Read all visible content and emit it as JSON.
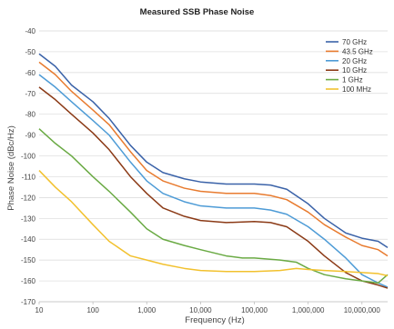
{
  "chart_data": {
    "type": "line",
    "title": "Measured SSB Phase Noise",
    "xlabel": "Frequency (Hz)",
    "ylabel": "Phase Noise (dBc/Hz)",
    "x_scale": "log",
    "xlim": [
      10,
      30000000
    ],
    "ylim": [
      -170,
      -40
    ],
    "x_ticks": [
      10,
      100,
      1000,
      10000,
      100000,
      1000000,
      10000000
    ],
    "x_tick_labels": [
      "10",
      "100",
      "1,000",
      "10,000",
      "100,000",
      "1,000,000",
      "10,000,000"
    ],
    "y_ticks": [
      -40,
      -50,
      -60,
      -70,
      -80,
      -90,
      -100,
      -110,
      -120,
      -130,
      -140,
      -150,
      -160,
      -170
    ],
    "y_tick_labels": [
      "-40",
      "-50",
      "-60",
      "-70",
      "-80",
      "-90",
      "-100",
      "-110",
      "-120",
      "-130",
      "-140",
      "-150",
      "-160",
      "-170"
    ],
    "grid": "horizontal",
    "legend_position": "top-right",
    "series": [
      {
        "name": "70 GHz",
        "color": "#3a62a8",
        "points": [
          [
            10,
            -51
          ],
          [
            20,
            -57
          ],
          [
            40,
            -66
          ],
          [
            100,
            -74
          ],
          [
            200,
            -82
          ],
          [
            500,
            -95
          ],
          [
            1000,
            -103
          ],
          [
            2000,
            -108
          ],
          [
            5000,
            -111
          ],
          [
            10000,
            -112.5
          ],
          [
            30000,
            -113.5
          ],
          [
            60000,
            -113.5
          ],
          [
            100000,
            -113.5
          ],
          [
            200000,
            -114
          ],
          [
            400000,
            -116
          ],
          [
            1000000,
            -123
          ],
          [
            2000000,
            -130
          ],
          [
            5000000,
            -137
          ],
          [
            10000000,
            -139.5
          ],
          [
            20000000,
            -141
          ],
          [
            30000000,
            -144
          ]
        ]
      },
      {
        "name": "43.5 GHz",
        "color": "#e87b2f",
        "points": [
          [
            10,
            -55
          ],
          [
            20,
            -61
          ],
          [
            40,
            -69
          ],
          [
            100,
            -78
          ],
          [
            200,
            -85
          ],
          [
            500,
            -98
          ],
          [
            1000,
            -107
          ],
          [
            2000,
            -112
          ],
          [
            5000,
            -115.5
          ],
          [
            10000,
            -117
          ],
          [
            30000,
            -118
          ],
          [
            100000,
            -118
          ],
          [
            200000,
            -119
          ],
          [
            400000,
            -121
          ],
          [
            1000000,
            -127
          ],
          [
            2000000,
            -133
          ],
          [
            5000000,
            -139
          ],
          [
            10000000,
            -143
          ],
          [
            20000000,
            -145
          ],
          [
            30000000,
            -148
          ]
        ]
      },
      {
        "name": "20 GHz",
        "color": "#4d9bd6",
        "points": [
          [
            10,
            -61
          ],
          [
            20,
            -67
          ],
          [
            40,
            -74
          ],
          [
            100,
            -83
          ],
          [
            200,
            -90
          ],
          [
            500,
            -103
          ],
          [
            1000,
            -112
          ],
          [
            2000,
            -118
          ],
          [
            5000,
            -122
          ],
          [
            10000,
            -124
          ],
          [
            30000,
            -125
          ],
          [
            100000,
            -125
          ],
          [
            200000,
            -126
          ],
          [
            400000,
            -128
          ],
          [
            1000000,
            -134
          ],
          [
            2000000,
            -140
          ],
          [
            5000000,
            -149
          ],
          [
            10000000,
            -157
          ],
          [
            20000000,
            -161
          ],
          [
            30000000,
            -163
          ]
        ]
      },
      {
        "name": "10 GHz",
        "color": "#8b3a16",
        "points": [
          [
            10,
            -67
          ],
          [
            20,
            -73
          ],
          [
            40,
            -80
          ],
          [
            100,
            -89
          ],
          [
            200,
            -97
          ],
          [
            500,
            -110
          ],
          [
            1000,
            -118
          ],
          [
            2000,
            -125
          ],
          [
            5000,
            -129
          ],
          [
            10000,
            -131
          ],
          [
            30000,
            -132
          ],
          [
            100000,
            -131.5
          ],
          [
            200000,
            -132
          ],
          [
            400000,
            -134
          ],
          [
            1000000,
            -141
          ],
          [
            2000000,
            -148
          ],
          [
            5000000,
            -156
          ],
          [
            10000000,
            -160
          ],
          [
            20000000,
            -162
          ],
          [
            30000000,
            -163.5
          ]
        ]
      },
      {
        "name": "1 GHz",
        "color": "#6aaa44",
        "points": [
          [
            10,
            -87
          ],
          [
            20,
            -94
          ],
          [
            40,
            -100
          ],
          [
            100,
            -110
          ],
          [
            200,
            -117
          ],
          [
            500,
            -127
          ],
          [
            1000,
            -135
          ],
          [
            2000,
            -140
          ],
          [
            5000,
            -143
          ],
          [
            10000,
            -145
          ],
          [
            30000,
            -148
          ],
          [
            60000,
            -149
          ],
          [
            100000,
            -149
          ],
          [
            300000,
            -150
          ],
          [
            600000,
            -151
          ],
          [
            1000000,
            -154
          ],
          [
            2000000,
            -157
          ],
          [
            5000000,
            -159
          ],
          [
            10000000,
            -160
          ],
          [
            20000000,
            -161
          ],
          [
            30000000,
            -157
          ]
        ]
      },
      {
        "name": "100 MHz",
        "color": "#f2c12e",
        "points": [
          [
            10,
            -107
          ],
          [
            20,
            -115
          ],
          [
            40,
            -122
          ],
          [
            100,
            -133
          ],
          [
            200,
            -141
          ],
          [
            500,
            -148
          ],
          [
            1000,
            -150
          ],
          [
            2000,
            -152
          ],
          [
            5000,
            -154
          ],
          [
            10000,
            -155
          ],
          [
            30000,
            -155.5
          ],
          [
            100000,
            -155.5
          ],
          [
            300000,
            -155
          ],
          [
            600000,
            -154
          ],
          [
            1000000,
            -154.5
          ],
          [
            2000000,
            -155
          ],
          [
            5000000,
            -155.5
          ],
          [
            10000000,
            -156
          ],
          [
            20000000,
            -156.5
          ],
          [
            30000000,
            -157.5
          ]
        ]
      }
    ]
  }
}
